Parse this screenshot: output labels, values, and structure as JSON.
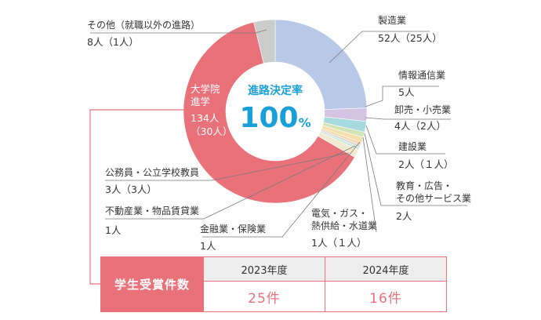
{
  "chart_data": {
    "type": "donut",
    "center": {
      "title": "進路決定率",
      "value": "100",
      "unit": "%"
    },
    "segments": [
      {
        "name": "製造業",
        "value": 52,
        "value_label": "52人（25人）",
        "color": "#b8c9e8"
      },
      {
        "name": "情報通信業",
        "value": 5,
        "value_label": "5人",
        "color": "#d4c3e3"
      },
      {
        "name": "卸売・小売業",
        "value": 4,
        "value_label": "4人（2人）",
        "color": "#a7dadf"
      },
      {
        "name": "建設業",
        "value": 2,
        "value_label": "2人（１人）",
        "color": "#cfe5b3"
      },
      {
        "name": "教育・広告・\nその他サービス業",
        "value": 2,
        "value_label": "2人",
        "color": "#f4e0ad"
      },
      {
        "name": "電気・ガス・\n熱供給・水道業",
        "value": 1,
        "value_label": "1人（１人）",
        "color": "#f6d3a8"
      },
      {
        "name": "金融業・保険業",
        "value": 1,
        "value_label": "1人",
        "color": "#d9d9d9"
      },
      {
        "name": "不動産業・物品賃貸業",
        "value": 1,
        "value_label": "1人",
        "color": "#cbe7d6"
      },
      {
        "name": "公務員・公立学校教員",
        "value": 3,
        "value_label": "3人（3人）",
        "color": "#f2ead0"
      },
      {
        "name": "大学院\n進学",
        "value": 134,
        "value_label": "134人\n（30人）",
        "color": "#e8717a"
      },
      {
        "name": "その他（就職以外の進路）",
        "value": 8,
        "value_label": "8人（1人）",
        "color": "#cccccc"
      }
    ]
  },
  "award_table": {
    "title": "学生受賞件数",
    "years": [
      "2023年度",
      "2024年度"
    ],
    "counts": [
      "25件",
      "16件"
    ]
  },
  "colors": {
    "accent": "#e8717a",
    "center_text": "#1aa0d8"
  }
}
